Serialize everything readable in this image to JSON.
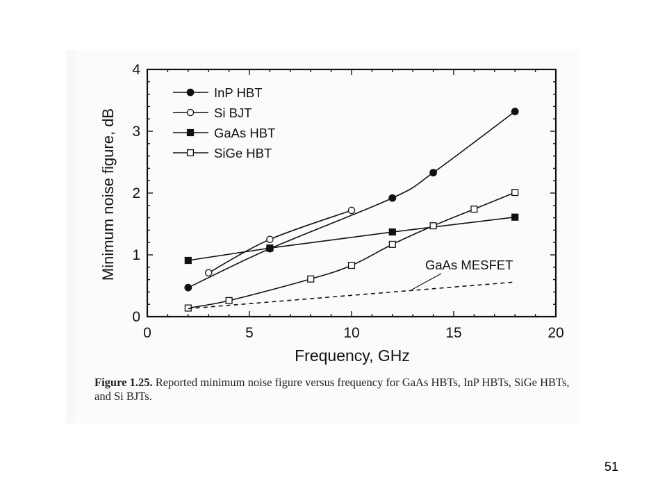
{
  "slide": {
    "number": "51"
  },
  "caption": {
    "figure_label": "Figure 1.25.",
    "text": " Reported minimum noise figure versus frequency for GaAs HBTs, InP HBTs, SiGe HBTs, and Si BJTs."
  },
  "chart_data": {
    "type": "line",
    "xlabel": "Frequency, GHz",
    "ylabel": "Minimum noise figure, dB",
    "xlim": [
      0,
      20
    ],
    "ylim": [
      0,
      4
    ],
    "xticks": [
      0,
      5,
      10,
      15,
      20
    ],
    "yticks": [
      0,
      1,
      2,
      3,
      4
    ],
    "grid": false,
    "legend_position": "top-left",
    "series": [
      {
        "name": "InP HBT",
        "marker": "filled-circle",
        "x": [
          2,
          6,
          12,
          14,
          18
        ],
        "y": [
          0.47,
          1.1,
          1.92,
          2.33,
          3.32
        ]
      },
      {
        "name": "Si BJT",
        "marker": "open-circle",
        "x": [
          3,
          6,
          10
        ],
        "y": [
          0.71,
          1.25,
          1.72
        ]
      },
      {
        "name": "GaAs HBT",
        "marker": "filled-square",
        "x": [
          2,
          6,
          12,
          18
        ],
        "y": [
          0.91,
          1.11,
          1.37,
          1.61
        ]
      },
      {
        "name": "SiGe HBT",
        "marker": "open-square",
        "x": [
          2,
          4,
          8,
          10,
          12,
          14,
          16,
          18
        ],
        "y": [
          0.14,
          0.26,
          0.61,
          0.83,
          1.17,
          1.47,
          1.74,
          2.01
        ]
      },
      {
        "name": "GaAs MESFET",
        "marker": "none",
        "style": "dashed",
        "x": [
          2,
          18
        ],
        "y": [
          0.13,
          0.56
        ]
      }
    ],
    "annotations": [
      {
        "text": "GaAs MESFET",
        "target_series": "GaAs MESFET"
      }
    ],
    "colors": {
      "line": "#111111",
      "axis": "#111111"
    }
  }
}
